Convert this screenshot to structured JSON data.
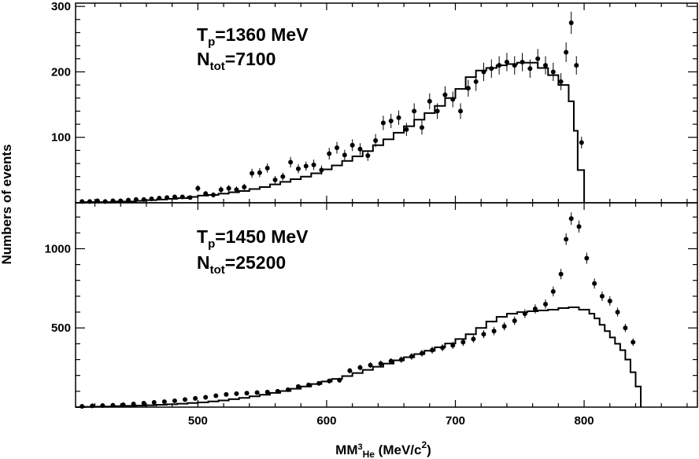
{
  "chart_data": {
    "type": "histogram-with-points",
    "xlabel": {
      "main": "MM",
      "sub_super": "3",
      "sub": "He",
      "units": " (MeV/c",
      "units_sup": "2",
      "units_close": ")"
    },
    "ylabel": "Numbers of events",
    "xlim": [
      405,
      888
    ],
    "x_ticks": [
      "500",
      "600",
      "700",
      "800"
    ],
    "x_tick_values": [
      500,
      600,
      700,
      800
    ],
    "panels": [
      {
        "name": "top",
        "annotation": {
          "T": "T",
          "T_sub": "p",
          "T_val": "=1360 MeV",
          "N": "N",
          "N_sub": "tot",
          "N_val": "=7100"
        },
        "ylim": [
          0,
          305
        ],
        "y_ticks": [
          "100",
          "200",
          "300"
        ],
        "y_tick_values": [
          100,
          200,
          300
        ],
        "histogram": {
          "x": [
            405,
            412,
            420,
            428,
            436,
            444,
            452,
            460,
            468,
            476,
            484,
            492,
            500,
            508,
            516,
            524,
            532,
            540,
            548,
            556,
            564,
            572,
            580,
            588,
            596,
            604,
            612,
            620,
            628,
            636,
            644,
            652,
            660,
            668,
            676,
            684,
            692,
            700,
            708,
            716,
            724,
            732,
            740,
            748,
            756,
            764,
            772,
            780,
            788,
            792,
            795,
            800
          ],
          "y": [
            0,
            1,
            1,
            1,
            2,
            2,
            3,
            4,
            5,
            6,
            7,
            9,
            11,
            12,
            14,
            16,
            18,
            21,
            24,
            28,
            32,
            36,
            40,
            45,
            51,
            57,
            64,
            71,
            79,
            88,
            97,
            107,
            117,
            127,
            137,
            148,
            160,
            174,
            192,
            202,
            206,
            210,
            212,
            214,
            214,
            206,
            195,
            180,
            155,
            110,
            50,
            0
          ]
        },
        "points": {
          "x": [
            410,
            416,
            422,
            428,
            434,
            440,
            446,
            452,
            458,
            464,
            470,
            476,
            482,
            488,
            494,
            500,
            506,
            512,
            518,
            524,
            530,
            536,
            542,
            548,
            554,
            560,
            566,
            572,
            578,
            584,
            590,
            596,
            602,
            608,
            614,
            620,
            626,
            632,
            638,
            644,
            650,
            656,
            662,
            668,
            674,
            680,
            686,
            692,
            698,
            704,
            710,
            716,
            722,
            728,
            734,
            740,
            746,
            752,
            758,
            764,
            770,
            776,
            782,
            786,
            790,
            794,
            798
          ],
          "y": [
            2,
            2,
            3,
            2,
            3,
            3,
            4,
            5,
            5,
            6,
            7,
            8,
            9,
            9,
            8,
            22,
            14,
            12,
            20,
            22,
            20,
            24,
            45,
            46,
            53,
            35,
            40,
            62,
            52,
            56,
            58,
            50,
            75,
            84,
            73,
            88,
            82,
            72,
            95,
            122,
            125,
            130,
            112,
            140,
            115,
            155,
            140,
            165,
            158,
            140,
            175,
            185,
            200,
            205,
            210,
            215,
            210,
            215,
            205,
            220,
            210,
            200,
            185,
            230,
            275,
            210,
            92
          ]
        },
        "error": [
          2,
          2,
          2,
          2,
          2,
          2,
          2,
          3,
          3,
          3,
          3,
          3,
          3,
          3,
          3,
          5,
          4,
          4,
          5,
          5,
          5,
          5,
          7,
          7,
          7,
          6,
          6,
          8,
          7,
          7,
          8,
          7,
          9,
          9,
          8,
          9,
          9,
          8,
          10,
          11,
          11,
          11,
          10,
          12,
          11,
          12,
          12,
          13,
          12,
          12,
          13,
          14,
          14,
          14,
          14,
          14,
          14,
          14,
          14,
          15,
          14,
          14,
          13,
          15,
          17,
          14,
          9
        ]
      },
      {
        "name": "bottom",
        "annotation": {
          "T": "T",
          "T_sub": "p",
          "T_val": "=1450 MeV",
          "N": "N",
          "N_sub": "tot",
          "N_val": "=25200"
        },
        "ylim": [
          0,
          1290
        ],
        "y_ticks": [
          "500",
          "1000"
        ],
        "y_tick_values": [
          500,
          1000
        ],
        "histogram": {
          "x": [
            405,
            412,
            420,
            428,
            436,
            444,
            452,
            460,
            468,
            476,
            484,
            492,
            500,
            508,
            516,
            524,
            532,
            540,
            548,
            556,
            564,
            572,
            580,
            588,
            596,
            604,
            612,
            620,
            628,
            636,
            644,
            652,
            660,
            668,
            676,
            684,
            692,
            700,
            708,
            716,
            724,
            732,
            740,
            748,
            756,
            764,
            772,
            780,
            788,
            796,
            804,
            808,
            812,
            816,
            820,
            824,
            828,
            832,
            836,
            840,
            844
          ],
          "y": [
            0,
            2,
            3,
            4,
            6,
            8,
            10,
            12,
            15,
            18,
            22,
            26,
            30,
            36,
            42,
            50,
            58,
            68,
            78,
            90,
            102,
            116,
            130,
            146,
            162,
            178,
            196,
            215,
            235,
            255,
            275,
            295,
            315,
            335,
            356,
            378,
            402,
            430,
            460,
            500,
            540,
            570,
            590,
            600,
            605,
            610,
            615,
            625,
            630,
            615,
            590,
            560,
            520,
            480,
            440,
            400,
            360,
            300,
            220,
            130,
            0
          ]
        },
        "points": {
          "x": [
            410,
            418,
            426,
            434,
            442,
            450,
            458,
            466,
            474,
            482,
            490,
            498,
            506,
            514,
            522,
            530,
            538,
            546,
            554,
            562,
            570,
            578,
            586,
            594,
            602,
            610,
            618,
            626,
            634,
            642,
            650,
            658,
            666,
            674,
            682,
            690,
            698,
            706,
            714,
            722,
            730,
            738,
            746,
            754,
            762,
            770,
            776,
            782,
            786,
            790,
            796,
            802,
            808,
            814,
            820,
            826,
            832,
            838
          ],
          "y": [
            5,
            8,
            10,
            12,
            15,
            20,
            25,
            30,
            34,
            40,
            48,
            55,
            62,
            72,
            80,
            85,
            88,
            92,
            95,
            100,
            110,
            130,
            140,
            150,
            165,
            170,
            230,
            250,
            265,
            275,
            290,
            300,
            320,
            340,
            360,
            375,
            390,
            410,
            430,
            460,
            480,
            510,
            545,
            590,
            620,
            650,
            730,
            840,
            1060,
            1190,
            1140,
            940,
            780,
            700,
            670,
            600,
            500,
            410
          ]
        },
        "error": [
          4,
          4,
          5,
          5,
          5,
          6,
          6,
          7,
          7,
          8,
          8,
          9,
          9,
          10,
          10,
          10,
          10,
          11,
          11,
          11,
          12,
          13,
          13,
          14,
          15,
          15,
          17,
          18,
          18,
          19,
          19,
          20,
          21,
          21,
          22,
          22,
          23,
          24,
          24,
          25,
          26,
          26,
          27,
          28,
          29,
          29,
          31,
          33,
          37,
          39,
          38,
          35,
          32,
          30,
          30,
          28,
          26,
          24
        ]
      }
    ]
  }
}
